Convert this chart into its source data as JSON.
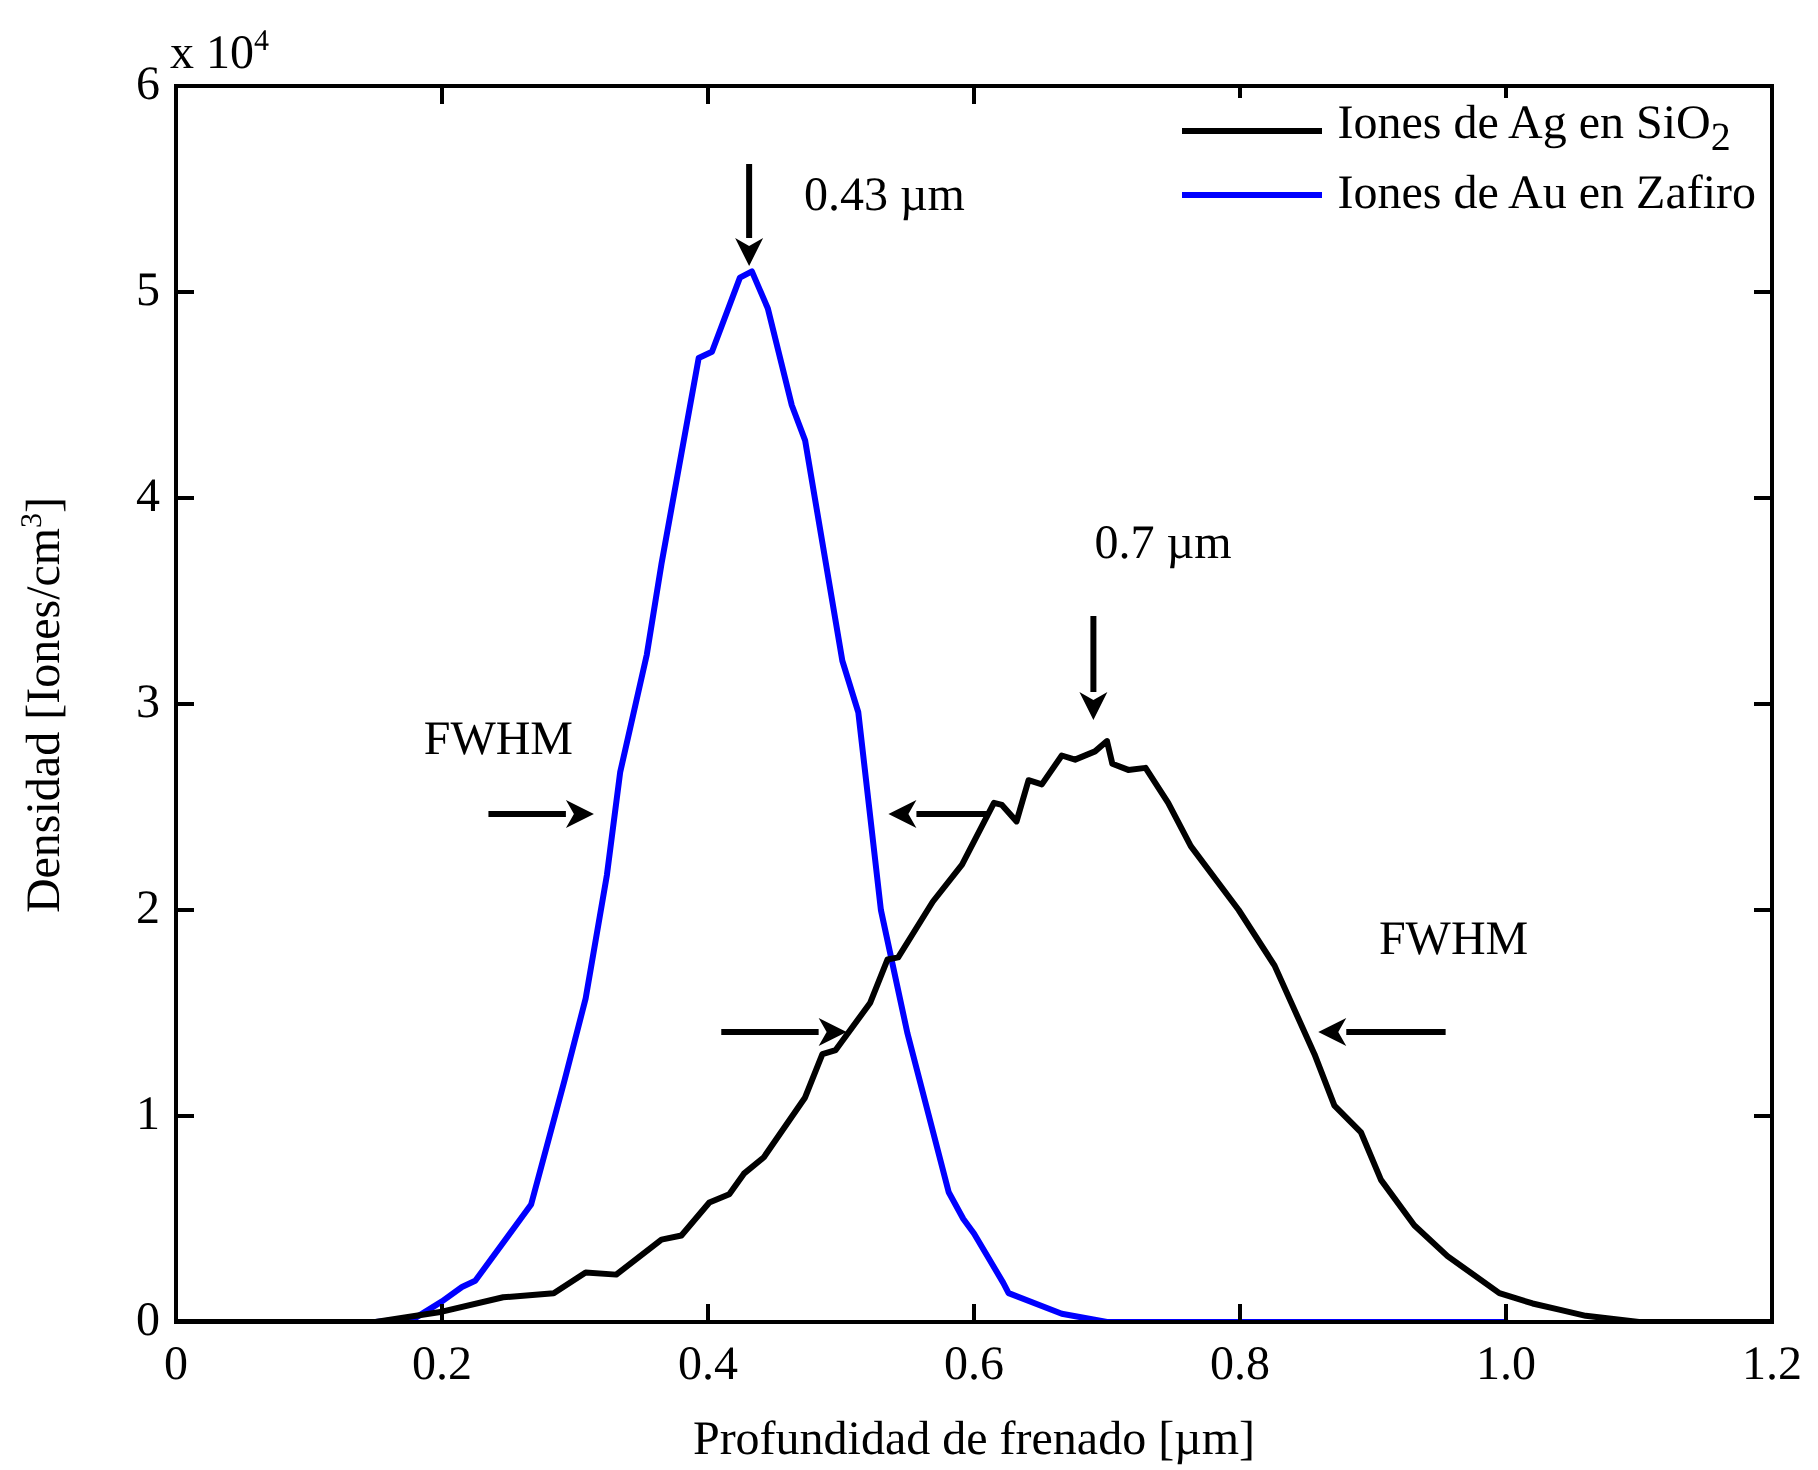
{
  "chart_data": {
    "type": "line",
    "xlabel": "Profundidad de frenado [µm]",
    "ylabel": "Densidad [Iones/cm$^{3}$]",
    "xlim": [
      0,
      1.2
    ],
    "xticks": [
      0,
      0.2,
      0.4,
      0.6,
      0.8,
      {
        "value": 1,
        "label": "1.0"
      },
      1.2
    ],
    "ylim": [
      0,
      6
    ],
    "yticks": [
      0,
      1,
      2,
      3,
      4,
      5,
      6
    ],
    "grid": false,
    "legend": "top right",
    "marker": "none",
    "line_style": "solid",
    "annotations": [
      "x 10$^{4}$",
      {
        "text": "0.43 µm",
        "x": 0.43,
        "y": 5.1
      },
      "0.7 µm",
      "FWHM",
      "FWHM"
    ],
    "series": [
      {
        "name": "Iones de Ag en SiO$_{2}$",
        "color": "#000000",
        "x": [
          0,
          0.15,
          0.2,
          0.246,
          0.284,
          0.308,
          0.331,
          0.365,
          0.38,
          0.401,
          0.416,
          0.427,
          0.442,
          0.473,
          0.486,
          0.496,
          0.522,
          0.535,
          0.543,
          0.569,
          0.591,
          0.615,
          0.621,
          0.632,
          0.641,
          0.651,
          0.666,
          0.676,
          0.691,
          0.7,
          0.704,
          0.716,
          0.729,
          0.746,
          0.763,
          0.799,
          0.826,
          0.856,
          0.871,
          0.891,
          0.906,
          0.931,
          0.956,
          0.995,
          1.02,
          1.04,
          1.06,
          1.1,
          1.2
        ],
        "values": [
          0,
          0,
          0.05,
          0.12,
          0.14,
          0.24,
          0.23,
          0.4,
          0.42,
          0.58,
          0.62,
          0.72,
          0.8,
          1.09,
          1.3,
          1.32,
          1.55,
          1.76,
          1.77,
          2.04,
          2.22,
          2.52,
          2.51,
          2.43,
          2.63,
          2.61,
          2.75,
          2.73,
          2.77,
          2.82,
          2.71,
          2.68,
          2.69,
          2.52,
          2.31,
          2,
          1.73,
          1.3,
          1.05,
          0.92,
          0.69,
          0.47,
          0.32,
          0.14,
          0.09,
          0.06,
          0.03,
          0,
          0
        ]
      },
      {
        "name": "Iones de Au en Zafiro",
        "color": "#0000ff",
        "x": [
          0,
          0.15,
          0.18,
          0.2,
          0.215,
          0.225,
          0.267,
          0.292,
          0.308,
          0.324,
          0.334,
          0.354,
          0.365,
          0.393,
          0.403,
          0.424,
          0.433,
          0.445,
          0.463,
          0.473,
          0.501,
          0.513,
          0.53,
          0.55,
          0.581,
          0.592,
          0.6,
          0.622,
          0.626,
          0.666,
          0.7,
          1.0
        ],
        "values": [
          0,
          0,
          0.02,
          0.1,
          0.17,
          0.2,
          0.57,
          1.17,
          1.57,
          2.17,
          2.67,
          3.24,
          3.68,
          4.68,
          4.71,
          5.07,
          5.1,
          4.92,
          4.45,
          4.28,
          3.21,
          2.96,
          2,
          1.4,
          0.63,
          0.5,
          0.43,
          0.19,
          0.14,
          0.04,
          0,
          0
        ]
      }
    ]
  }
}
